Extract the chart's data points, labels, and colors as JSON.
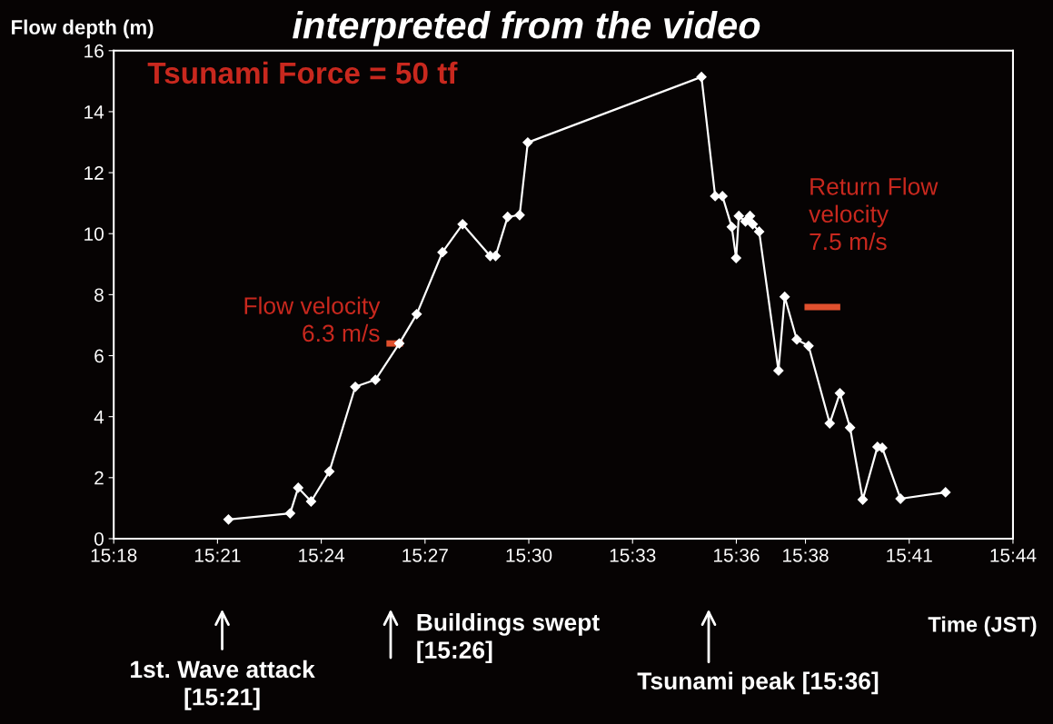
{
  "chart_data": {
    "type": "line",
    "title": "interpreted from the video",
    "ylabel": "Flow depth (m)",
    "xlabel": "Time (JST)",
    "x": [
      15.3553,
      15.385,
      15.3889,
      15.3951,
      15.4039,
      15.4164,
      15.4261,
      15.4376,
      15.446,
      15.4584,
      15.4681,
      15.4814,
      15.484,
      15.4898,
      15.4956,
      15.4995,
      15.5832,
      15.5898,
      15.5933,
      15.5978,
      15.5999,
      15.6012,
      15.6044,
      15.6066,
      15.6079,
      15.611,
      15.6203,
      15.6233,
      15.6291,
      15.6348,
      15.645,
      15.6499,
      15.6548,
      15.6609,
      15.668,
      15.6703,
      15.6791,
      15.7008
    ],
    "series": [
      {
        "color": "#ffffff",
        "values": [
          0.63,
          0.83,
          1.67,
          1.22,
          2.2,
          4.98,
          5.21,
          6.4,
          7.36,
          9.39,
          10.31,
          9.27,
          9.27,
          10.55,
          10.61,
          12.99,
          15.14,
          11.23,
          11.23,
          10.22,
          9.2,
          10.58,
          10.4,
          10.58,
          10.31,
          10.07,
          5.51,
          7.93,
          6.53,
          6.32,
          3.78,
          4.77,
          3.64,
          1.28,
          3.01,
          2.98,
          1.31,
          1.52
        ]
      }
    ],
    "marker": "diamond",
    "line_style": "solid",
    "grid": false,
    "legend": false,
    "xlim": [
      15.3,
      15.7333
    ],
    "ylim": [
      0,
      16
    ],
    "yticks": [
      0,
      2,
      4,
      6,
      8,
      10,
      12,
      14,
      16
    ],
    "xticks": [
      {
        "value": 15.3,
        "label": "15:18"
      },
      {
        "value": 15.35,
        "label": "15:21"
      },
      {
        "value": 15.4,
        "label": "15:24"
      },
      {
        "value": 15.45,
        "label": "15:27"
      },
      {
        "value": 15.5,
        "label": "15:30"
      },
      {
        "value": 15.55,
        "label": "15:33"
      },
      {
        "value": 15.6,
        "label": "15:36"
      },
      {
        "value": 15.6333,
        "label": "15:38"
      },
      {
        "value": 15.6833,
        "label": "15:41"
      },
      {
        "value": 15.7333,
        "label": "15:44"
      }
    ],
    "annotations": [
      "Tsunami Force = 50 tf",
      {
        "text": "Flow velocity\n6.3 m/s",
        "x": 15.4354,
        "y": 6.4
      },
      "Return Flow\nvelocity\n7.5 m/s",
      "1st. Wave attack\n[15:21]",
      "Buildings swept\n[15:26]",
      "Tsunami peak [15:36]"
    ]
  }
}
